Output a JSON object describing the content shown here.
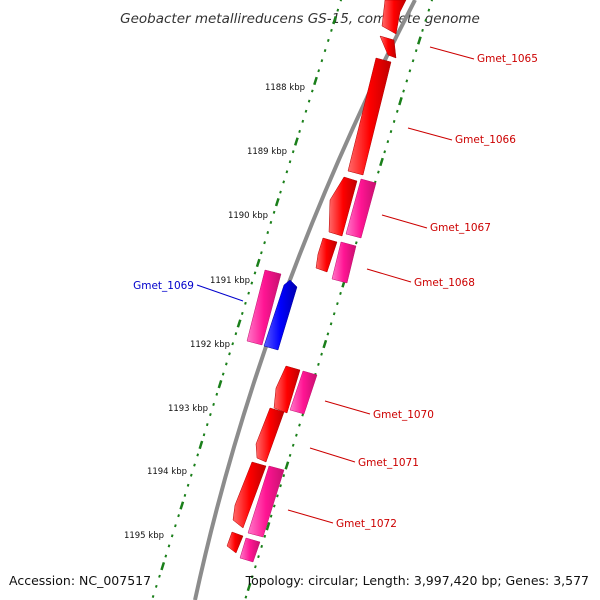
{
  "title": "Geobacter metallireducens GS-15, complete genome",
  "footer": {
    "accession": "Accession: NC_007517",
    "topology": "Topology: circular; Length: 3,997,420 bp; Genes: 3,577"
  },
  "scale_labels": [
    "1188 kbp",
    "1189 kbp",
    "1190 kbp",
    "1191 kbp",
    "1192 kbp",
    "1193 kbp",
    "1194 kbp",
    "1195 kbp"
  ],
  "gene_labels": [
    "Gmet_1065",
    "Gmet_1066",
    "Gmet_1067",
    "Gmet_1068",
    "Gmet_1069",
    "Gmet_1070",
    "Gmet_1071",
    "Gmet_1072"
  ],
  "colors": {
    "cds_forward": "#ff0000",
    "cds_reverse": "#ff1493",
    "highlighted_gene": "#0000ff",
    "label_default": "#cc0000",
    "label_highlight": "#0000cc",
    "backbone": "#808080",
    "ticks": "#1a7f1a"
  }
}
